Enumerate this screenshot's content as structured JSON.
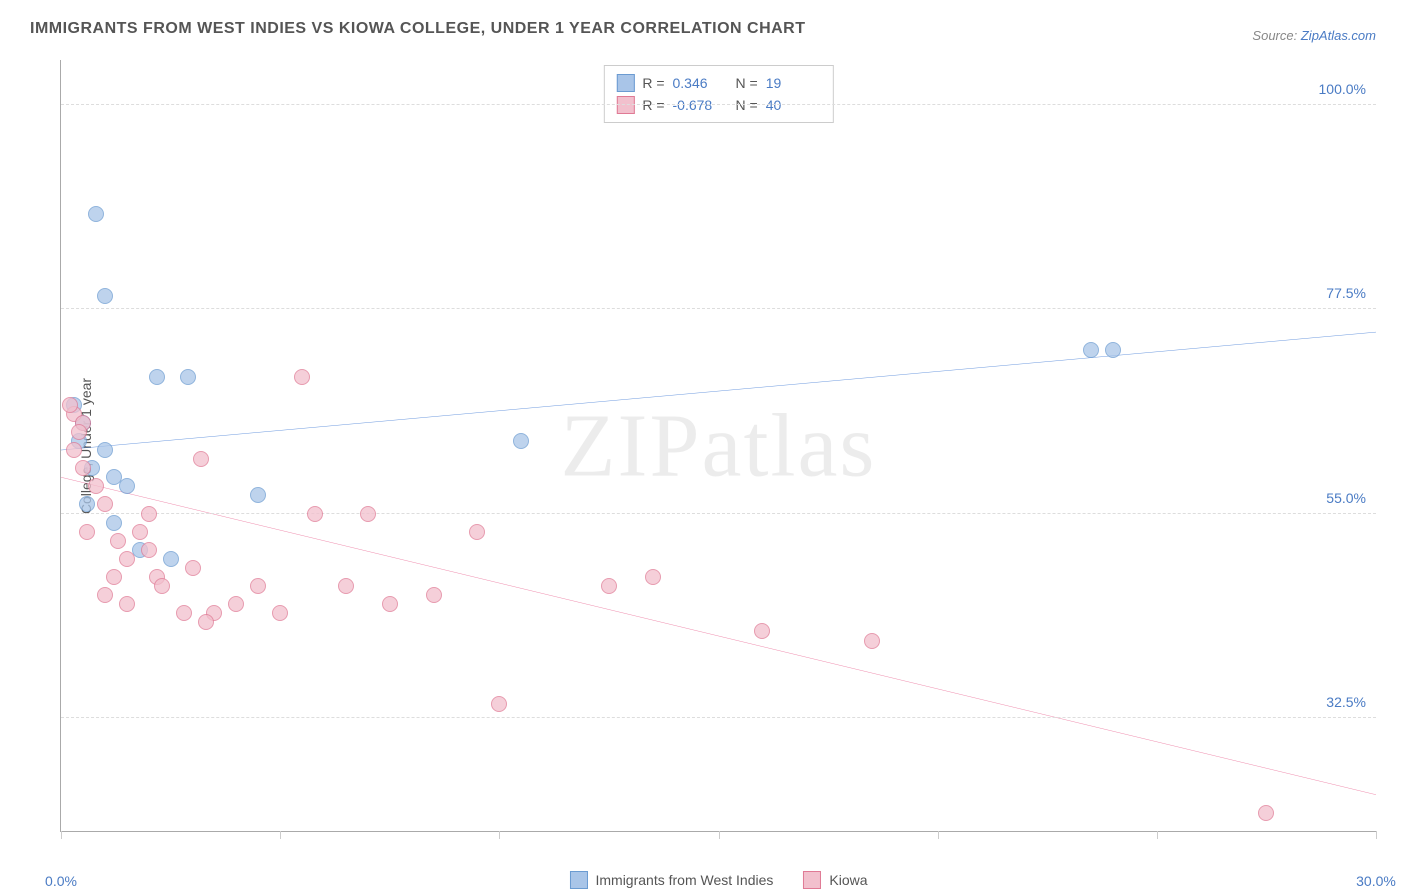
{
  "title": "IMMIGRANTS FROM WEST INDIES VS KIOWA COLLEGE, UNDER 1 YEAR CORRELATION CHART",
  "source_label": "Source:",
  "source_link": "ZipAtlas.com",
  "ylabel": "College, Under 1 year",
  "watermark": "ZIPatlas",
  "chart": {
    "type": "scatter",
    "xlim": [
      0,
      30
    ],
    "ylim": [
      20,
      105
    ],
    "yticks": [
      {
        "v": 32.5,
        "label": "32.5%"
      },
      {
        "v": 55.0,
        "label": "55.0%"
      },
      {
        "v": 77.5,
        "label": "77.5%"
      },
      {
        "v": 100.0,
        "label": "100.0%"
      }
    ],
    "xticks": [
      0,
      5,
      10,
      15,
      20,
      25,
      30
    ],
    "xtick_labels": {
      "start": "0.0%",
      "end": "30.0%"
    },
    "series": [
      {
        "name": "Immigrants from West Indies",
        "fill": "#a9c5e8",
        "stroke": "#6b9bd1",
        "line_color": "#2e6fd1",
        "r_label": "R =",
        "r_value": "0.346",
        "n_label": "N =",
        "n_value": "19",
        "trend": {
          "x1": 0,
          "y1": 62,
          "x2": 30,
          "y2": 75
        },
        "points": [
          [
            0.8,
            88
          ],
          [
            1.0,
            79
          ],
          [
            2.2,
            70
          ],
          [
            2.9,
            70
          ],
          [
            0.5,
            65
          ],
          [
            0.7,
            60
          ],
          [
            1.0,
            62
          ],
          [
            1.2,
            59
          ],
          [
            1.5,
            58
          ],
          [
            0.6,
            56
          ],
          [
            1.2,
            54
          ],
          [
            1.8,
            51
          ],
          [
            2.5,
            50
          ],
          [
            4.5,
            57
          ],
          [
            10.5,
            63
          ],
          [
            23.5,
            73
          ],
          [
            24.0,
            73
          ],
          [
            0.3,
            67
          ],
          [
            0.4,
            63
          ]
        ]
      },
      {
        "name": "Kiowa",
        "fill": "#f2c0cd",
        "stroke": "#e07a95",
        "line_color": "#e85a8a",
        "r_label": "R =",
        "r_value": "-0.678",
        "n_label": "N =",
        "n_value": "40",
        "trend": {
          "x1": 0,
          "y1": 59,
          "x2": 30,
          "y2": 24
        },
        "points": [
          [
            0.3,
            66
          ],
          [
            0.5,
            65
          ],
          [
            0.3,
            62
          ],
          [
            0.5,
            60
          ],
          [
            0.8,
            58
          ],
          [
            1.0,
            56
          ],
          [
            0.6,
            53
          ],
          [
            1.3,
            52
          ],
          [
            1.5,
            50
          ],
          [
            2.0,
            51
          ],
          [
            2.2,
            48
          ],
          [
            1.0,
            46
          ],
          [
            1.5,
            45
          ],
          [
            2.3,
            47
          ],
          [
            3.0,
            49
          ],
          [
            3.5,
            44
          ],
          [
            4.0,
            45
          ],
          [
            5.0,
            44
          ],
          [
            5.5,
            70
          ],
          [
            3.2,
            61
          ],
          [
            5.8,
            55
          ],
          [
            7.0,
            55
          ],
          [
            7.5,
            45
          ],
          [
            8.5,
            46
          ],
          [
            9.5,
            53
          ],
          [
            10.0,
            34
          ],
          [
            12.5,
            47
          ],
          [
            13.5,
            48
          ],
          [
            16.0,
            42
          ],
          [
            18.5,
            41
          ],
          [
            27.5,
            22
          ],
          [
            0.2,
            67
          ],
          [
            0.4,
            64
          ],
          [
            2.8,
            44
          ],
          [
            4.5,
            47
          ],
          [
            6.5,
            47
          ],
          [
            1.8,
            53
          ],
          [
            2.0,
            55
          ],
          [
            1.2,
            48
          ],
          [
            3.3,
            43
          ]
        ]
      }
    ]
  },
  "colors": {
    "grid": "#dddddd",
    "axis": "#aaaaaa",
    "text": "#555555",
    "tick": "#4a7bc4"
  }
}
